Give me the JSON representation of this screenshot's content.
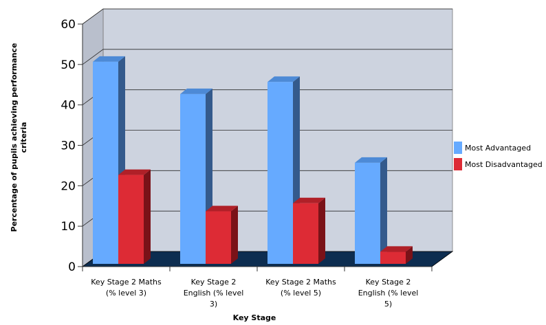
{
  "chart_data": {
    "type": "bar",
    "title": "",
    "xlabel": "Key Stage",
    "ylabel": "Percentage of pupils achieving performance criteria",
    "ylim": [
      0,
      60
    ],
    "yticks": [
      0,
      10,
      20,
      30,
      40,
      50,
      60
    ],
    "grid": true,
    "legend_position": "right",
    "categories": [
      [
        "Key Stage 2 Maths",
        "(% level 3)"
      ],
      [
        "Key Stage 2",
        "English (% level",
        "3)"
      ],
      [
        "Key Stage 2 Maths",
        "(% level 5)"
      ],
      [
        "Key Stage 2",
        "English (% level",
        "5)"
      ]
    ],
    "series": [
      {
        "name": "Most Advantaged",
        "values": [
          50,
          42,
          45,
          25
        ],
        "color": "#66aaff",
        "side_color": "#345a8c",
        "top_color": "#4d8ad6"
      },
      {
        "name": "Most Disadvantaged",
        "values": [
          22,
          13,
          15,
          3
        ],
        "color": "#dd2b35",
        "side_color": "#7a1218",
        "top_color": "#b02028"
      }
    ],
    "colors": {
      "wall": "#cdd3df",
      "floor": "#0d2d50",
      "grid": "#2a2a2a"
    }
  }
}
